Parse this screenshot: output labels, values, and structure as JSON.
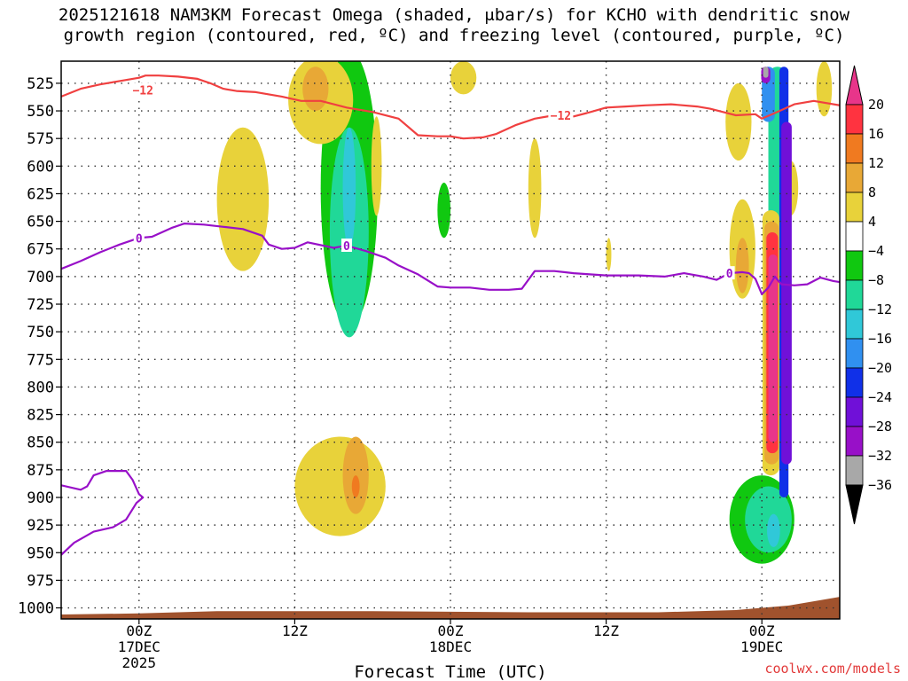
{
  "title": {
    "line1": "2025121618 NAM3KM Forecast Omega (shaded, μbar/s) for KCHO with dendritic snow",
    "line2": "growth region (contoured, red, ºC) and freezing level (contoured, purple, ºC)"
  },
  "credit": "coolwx.com/models",
  "chart_data": {
    "type": "heatmap",
    "xlabel": "Forecast Time (UTC)",
    "ylabel": "",
    "x_range_hours": [
      -6,
      54
    ],
    "x_ticks": [
      {
        "hour": 0,
        "lines": [
          "00Z",
          "17DEC",
          "2025"
        ]
      },
      {
        "hour": 12,
        "lines": [
          "12Z"
        ]
      },
      {
        "hour": 24,
        "lines": [
          "00Z",
          "18DEC"
        ]
      },
      {
        "hour": 36,
        "lines": [
          "12Z"
        ]
      },
      {
        "hour": 48,
        "lines": [
          "00Z",
          "19DEC"
        ]
      }
    ],
    "y_range_hpa": [
      1010,
      505
    ],
    "y_ticks": [
      525,
      550,
      575,
      600,
      625,
      650,
      675,
      700,
      725,
      750,
      775,
      800,
      825,
      850,
      875,
      900,
      925,
      950,
      975,
      1000
    ],
    "grid": "dotted",
    "colorbar": {
      "labels": [
        "20",
        "16",
        "12",
        "8",
        "4",
        "−4",
        "−8",
        "−12",
        "−16",
        "−20",
        "−24",
        "−28",
        "−32",
        "−36"
      ],
      "bins": [
        {
          "min": 20,
          "max": 24,
          "color": "#e8358a"
        },
        {
          "min": 16,
          "max": 20,
          "color": "#ff3340"
        },
        {
          "min": 12,
          "max": 16,
          "color": "#f07a20"
        },
        {
          "min": 8,
          "max": 12,
          "color": "#e8a836"
        },
        {
          "min": 4,
          "max": 8,
          "color": "#e8d23a"
        },
        {
          "min": -4,
          "max": 4,
          "color": "#ffffff"
        },
        {
          "min": -8,
          "max": -4,
          "color": "#10c810"
        },
        {
          "min": -12,
          "max": -8,
          "color": "#20d898"
        },
        {
          "min": -16,
          "max": -12,
          "color": "#30c8d8"
        },
        {
          "min": -20,
          "max": -16,
          "color": "#3090f0"
        },
        {
          "min": -24,
          "max": -20,
          "color": "#1030e8"
        },
        {
          "min": -28,
          "max": -24,
          "color": "#7010d8"
        },
        {
          "min": -32,
          "max": -28,
          "color": "#9810c8"
        },
        {
          "min": -36,
          "max": -32,
          "color": "#a8a8a8"
        }
      ],
      "extend_max_color": "#e8358a",
      "extend_min_color": "#000000"
    },
    "ground_color": "#a0522d",
    "series": [
      {
        "name": "-12",
        "type": "contour",
        "color": "#f04040",
        "label": "−12",
        "label_points": [
          {
            "h": 0.3,
            "p": 531
          },
          {
            "h": 32.5,
            "p": 554
          }
        ],
        "points": [
          [
            -6,
            537
          ],
          [
            -4.5,
            530
          ],
          [
            -3,
            526
          ],
          [
            -1.5,
            523
          ],
          [
            0,
            520
          ],
          [
            0.5,
            518
          ],
          [
            1.5,
            518
          ],
          [
            3,
            519
          ],
          [
            4.5,
            521
          ],
          [
            5.5,
            525
          ],
          [
            6.5,
            530
          ],
          [
            7.5,
            532
          ],
          [
            9,
            533
          ],
          [
            11,
            537
          ],
          [
            12.5,
            541
          ],
          [
            14,
            541
          ],
          [
            16,
            547
          ],
          [
            18,
            551
          ],
          [
            20,
            557
          ],
          [
            21.5,
            572
          ],
          [
            23,
            573
          ],
          [
            24,
            573
          ],
          [
            25,
            575
          ],
          [
            26.5,
            574
          ],
          [
            27.5,
            571
          ],
          [
            29,
            563
          ],
          [
            30.5,
            557
          ],
          [
            32,
            554
          ],
          [
            33.5,
            555
          ],
          [
            34.5,
            552
          ],
          [
            36,
            547
          ],
          [
            37.5,
            546
          ],
          [
            39,
            545
          ],
          [
            41,
            544
          ],
          [
            43,
            546
          ],
          [
            44,
            548
          ],
          [
            46,
            554
          ],
          [
            47.5,
            553
          ],
          [
            48,
            557
          ],
          [
            49,
            552
          ],
          [
            50.5,
            544
          ],
          [
            52,
            541
          ],
          [
            54,
            545
          ]
        ]
      },
      {
        "name": "0",
        "type": "contour",
        "color": "#9810c8",
        "label": "0",
        "label_points": [
          {
            "h": 0,
            "p": 665
          },
          {
            "h": 16,
            "p": 672
          },
          {
            "h": 45.5,
            "p": 697
          }
        ],
        "points": [
          [
            -6,
            693
          ],
          [
            -4.5,
            686
          ],
          [
            -3,
            678
          ],
          [
            -1.5,
            671
          ],
          [
            0,
            665
          ],
          [
            1,
            664
          ],
          [
            2.5,
            656
          ],
          [
            3.5,
            652
          ],
          [
            5,
            653
          ],
          [
            6.5,
            655
          ],
          [
            8,
            657
          ],
          [
            9.5,
            663
          ],
          [
            10,
            671
          ],
          [
            11,
            675
          ],
          [
            12,
            674
          ],
          [
            13,
            669
          ],
          [
            15,
            674
          ],
          [
            16,
            672
          ],
          [
            17.5,
            677
          ],
          [
            19,
            683
          ],
          [
            20,
            690
          ],
          [
            21.5,
            698
          ],
          [
            23,
            709
          ],
          [
            24,
            710
          ],
          [
            25.5,
            710
          ],
          [
            27,
            712
          ],
          [
            28.5,
            712
          ],
          [
            29.5,
            711
          ],
          [
            30.5,
            695
          ],
          [
            32,
            695
          ],
          [
            33.5,
            697
          ],
          [
            36,
            699
          ],
          [
            38.5,
            699
          ],
          [
            40.5,
            700
          ],
          [
            42,
            697
          ],
          [
            43.5,
            700
          ],
          [
            44.5,
            703
          ],
          [
            45.5,
            697
          ],
          [
            46.5,
            696
          ],
          [
            47,
            697
          ],
          [
            47.5,
            702
          ],
          [
            48,
            716
          ],
          [
            48.5,
            710
          ],
          [
            49,
            700
          ],
          [
            49.5,
            707
          ],
          [
            50.5,
            708
          ],
          [
            51.5,
            707
          ],
          [
            52.5,
            701
          ],
          [
            53.5,
            704
          ],
          [
            54,
            705
          ]
        ]
      },
      {
        "name": "0-low",
        "type": "contour",
        "color": "#9810c8",
        "label": "",
        "label_points": [],
        "points": [
          [
            -6,
            889
          ],
          [
            -4.5,
            893
          ],
          [
            -4,
            890
          ],
          [
            -3.5,
            880
          ],
          [
            -2.5,
            876
          ],
          [
            -1,
            876
          ],
          [
            -0.5,
            884
          ],
          [
            0,
            897
          ],
          [
            0.3,
            900
          ],
          [
            -0.2,
            905
          ],
          [
            -1,
            920
          ],
          [
            -2,
            927
          ],
          [
            -3.5,
            931
          ],
          [
            -5,
            941
          ],
          [
            -6,
            952
          ]
        ]
      }
    ],
    "omega_cells": [
      {
        "h": 0,
        "p": 960,
        "rh": 2.5,
        "rp": 28,
        "bin": -4
      },
      {
        "h": 10.5,
        "p": 790,
        "rh": 5.5,
        "rp": 55,
        "bin": -4
      },
      {
        "h": 12.8,
        "p": 770,
        "rh": 4.8,
        "rp": 50,
        "bin": -4
      },
      {
        "h": 16.5,
        "p": 630,
        "rh": 3.0,
        "rp": 150,
        "bin": -4
      },
      {
        "h": 16.0,
        "p": 780,
        "rh": 4.5,
        "rp": 60,
        "bin": -4
      },
      {
        "h": 16.2,
        "p": 620,
        "rh": 2.2,
        "rp": 125,
        "bin": -8
      },
      {
        "h": 16.2,
        "p": 660,
        "rh": 1.5,
        "rp": 95,
        "bin": -12
      },
      {
        "h": 16.2,
        "p": 620,
        "rh": 0.5,
        "rp": 55,
        "bin": -16
      },
      {
        "h": 23.2,
        "p": 660,
        "rh": 0.9,
        "rp": 45,
        "bin": -4
      },
      {
        "h": 23.5,
        "p": 640,
        "rh": 0.5,
        "rp": 25,
        "bin": -8
      },
      {
        "h": 27.0,
        "p": 790,
        "rh": 0.5,
        "rp": 70,
        "bin": -4
      },
      {
        "h": 31.5,
        "p": 930,
        "rh": 2.5,
        "rp": 35,
        "bin": -4
      },
      {
        "h": 39.0,
        "p": 925,
        "rh": 4.5,
        "rp": 40,
        "bin": -4
      },
      {
        "h": 42.0,
        "p": 790,
        "rh": 0.3,
        "rp": 25,
        "bin": -4
      },
      {
        "h": 46.5,
        "p": 850,
        "rh": 2.4,
        "rp": 120,
        "bin": -4
      },
      {
        "h": 48.0,
        "p": 920,
        "rh": 2.5,
        "rp": 40,
        "bin": -8
      },
      {
        "h": 48.5,
        "p": 920,
        "rh": 1.8,
        "rp": 30,
        "bin": -12
      },
      {
        "h": 48.9,
        "p": 930,
        "rh": 0.5,
        "rp": 15,
        "bin": -16
      },
      {
        "h": 50.5,
        "p": 700,
        "rh": 1.6,
        "rp": 165,
        "bin": -4
      },
      {
        "h": 51.8,
        "p": 620,
        "rh": 1.0,
        "rp": 100,
        "bin": -4
      },
      {
        "h": 8.0,
        "p": 630,
        "rh": 2.0,
        "rp": 65,
        "bin": 4
      },
      {
        "h": 14.0,
        "p": 540,
        "rh": 2.5,
        "rp": 40,
        "bin": 4
      },
      {
        "h": 13.6,
        "p": 530,
        "rh": 1.0,
        "rp": 20,
        "bin": 8
      },
      {
        "h": 18.3,
        "p": 600,
        "rh": 0.4,
        "rp": 45,
        "bin": 4
      },
      {
        "h": 15.5,
        "p": 890,
        "rh": 3.5,
        "rp": 45,
        "bin": 4
      },
      {
        "h": 16.7,
        "p": 880,
        "rh": 1.0,
        "rp": 35,
        "bin": 8
      },
      {
        "h": 16.7,
        "p": 890,
        "rh": 0.3,
        "rp": 10,
        "bin": 12
      },
      {
        "h": 25.0,
        "p": 520,
        "rh": 1.0,
        "rp": 15,
        "bin": 4
      },
      {
        "h": 30.5,
        "p": 620,
        "rh": 0.5,
        "rp": 45,
        "bin": 4
      },
      {
        "h": 36.2,
        "p": 680,
        "rh": 0.2,
        "rp": 15,
        "bin": 4
      },
      {
        "h": 46.2,
        "p": 560,
        "rh": 1.0,
        "rp": 35,
        "bin": 4
      },
      {
        "h": 46.5,
        "p": 675,
        "rh": 1.0,
        "rp": 45,
        "bin": 4
      },
      {
        "h": 46.5,
        "p": 690,
        "rh": 0.5,
        "rp": 25,
        "bin": 8
      },
      {
        "h": 50.2,
        "p": 620,
        "rh": 0.6,
        "rp": 25,
        "bin": 4
      },
      {
        "h": 52.8,
        "p": 530,
        "rh": 0.6,
        "rp": 25,
        "bin": 4
      }
    ],
    "vertical_bands": [
      {
        "h": 49.2,
        "top": 510,
        "bottom": 860,
        "half_width": 0.7,
        "bin": -12
      },
      {
        "h": 48.5,
        "top": 510,
        "bottom": 560,
        "half_width": 0.5,
        "bin": -20
      },
      {
        "h": 48.7,
        "top": 640,
        "bottom": 880,
        "half_width": 0.65,
        "bin": 4
      },
      {
        "h": 48.75,
        "top": 650,
        "bottom": 870,
        "half_width": 0.55,
        "bin": 8
      },
      {
        "h": 48.8,
        "top": 660,
        "bottom": 860,
        "half_width": 0.45,
        "bin": 16
      },
      {
        "h": 48.85,
        "top": 680,
        "bottom": 850,
        "half_width": 0.35,
        "bin": 20
      },
      {
        "h": 49.7,
        "top": 510,
        "bottom": 900,
        "half_width": 0.35,
        "bin": -24
      },
      {
        "h": 49.9,
        "top": 560,
        "bottom": 870,
        "half_width": 0.4,
        "bin": -28
      },
      {
        "h": 48.3,
        "top": 510,
        "bottom": 525,
        "half_width": 0.35,
        "bin": -32
      },
      {
        "h": 48.3,
        "top": 510,
        "bottom": 520,
        "half_width": 0.2,
        "bin": -36
      }
    ]
  }
}
